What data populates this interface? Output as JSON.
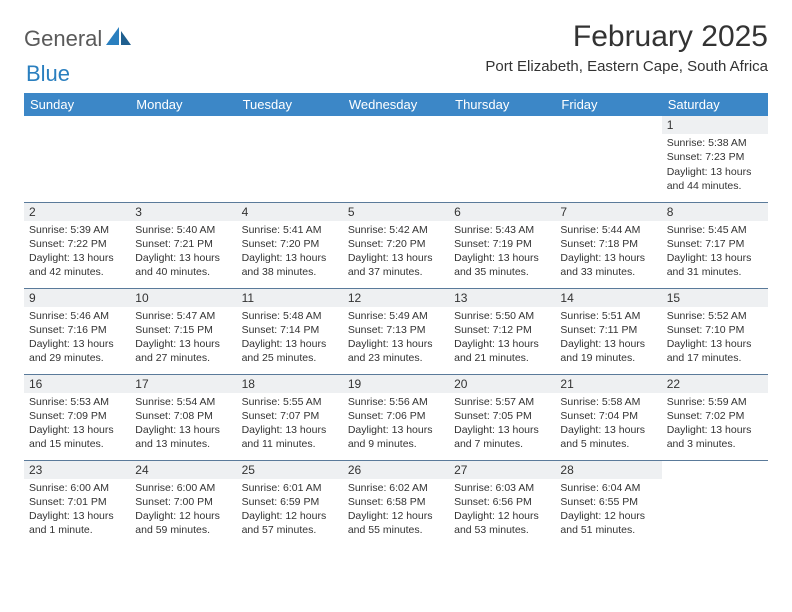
{
  "logo": {
    "word1": "General",
    "word2": "Blue",
    "icon_color": "#2a7fbf",
    "text1_color": "#5a5a5a",
    "text2_color": "#2a7fbf"
  },
  "title": "February 2025",
  "location": "Port Elizabeth, Eastern Cape, South Africa",
  "header_bg": "#3c87c7",
  "header_fg": "#ffffff",
  "daynum_bg": "#eef0f2",
  "rule_color": "#5a7a9a",
  "text_color": "#333333",
  "weekdays": [
    "Sunday",
    "Monday",
    "Tuesday",
    "Wednesday",
    "Thursday",
    "Friday",
    "Saturday"
  ],
  "weeks": [
    [
      {
        "n": "",
        "sr": "",
        "ss": "",
        "dl": ""
      },
      {
        "n": "",
        "sr": "",
        "ss": "",
        "dl": ""
      },
      {
        "n": "",
        "sr": "",
        "ss": "",
        "dl": ""
      },
      {
        "n": "",
        "sr": "",
        "ss": "",
        "dl": ""
      },
      {
        "n": "",
        "sr": "",
        "ss": "",
        "dl": ""
      },
      {
        "n": "",
        "sr": "",
        "ss": "",
        "dl": ""
      },
      {
        "n": "1",
        "sr": "Sunrise: 5:38 AM",
        "ss": "Sunset: 7:23 PM",
        "dl": "Daylight: 13 hours and 44 minutes."
      }
    ],
    [
      {
        "n": "2",
        "sr": "Sunrise: 5:39 AM",
        "ss": "Sunset: 7:22 PM",
        "dl": "Daylight: 13 hours and 42 minutes."
      },
      {
        "n": "3",
        "sr": "Sunrise: 5:40 AM",
        "ss": "Sunset: 7:21 PM",
        "dl": "Daylight: 13 hours and 40 minutes."
      },
      {
        "n": "4",
        "sr": "Sunrise: 5:41 AM",
        "ss": "Sunset: 7:20 PM",
        "dl": "Daylight: 13 hours and 38 minutes."
      },
      {
        "n": "5",
        "sr": "Sunrise: 5:42 AM",
        "ss": "Sunset: 7:20 PM",
        "dl": "Daylight: 13 hours and 37 minutes."
      },
      {
        "n": "6",
        "sr": "Sunrise: 5:43 AM",
        "ss": "Sunset: 7:19 PM",
        "dl": "Daylight: 13 hours and 35 minutes."
      },
      {
        "n": "7",
        "sr": "Sunrise: 5:44 AM",
        "ss": "Sunset: 7:18 PM",
        "dl": "Daylight: 13 hours and 33 minutes."
      },
      {
        "n": "8",
        "sr": "Sunrise: 5:45 AM",
        "ss": "Sunset: 7:17 PM",
        "dl": "Daylight: 13 hours and 31 minutes."
      }
    ],
    [
      {
        "n": "9",
        "sr": "Sunrise: 5:46 AM",
        "ss": "Sunset: 7:16 PM",
        "dl": "Daylight: 13 hours and 29 minutes."
      },
      {
        "n": "10",
        "sr": "Sunrise: 5:47 AM",
        "ss": "Sunset: 7:15 PM",
        "dl": "Daylight: 13 hours and 27 minutes."
      },
      {
        "n": "11",
        "sr": "Sunrise: 5:48 AM",
        "ss": "Sunset: 7:14 PM",
        "dl": "Daylight: 13 hours and 25 minutes."
      },
      {
        "n": "12",
        "sr": "Sunrise: 5:49 AM",
        "ss": "Sunset: 7:13 PM",
        "dl": "Daylight: 13 hours and 23 minutes."
      },
      {
        "n": "13",
        "sr": "Sunrise: 5:50 AM",
        "ss": "Sunset: 7:12 PM",
        "dl": "Daylight: 13 hours and 21 minutes."
      },
      {
        "n": "14",
        "sr": "Sunrise: 5:51 AM",
        "ss": "Sunset: 7:11 PM",
        "dl": "Daylight: 13 hours and 19 minutes."
      },
      {
        "n": "15",
        "sr": "Sunrise: 5:52 AM",
        "ss": "Sunset: 7:10 PM",
        "dl": "Daylight: 13 hours and 17 minutes."
      }
    ],
    [
      {
        "n": "16",
        "sr": "Sunrise: 5:53 AM",
        "ss": "Sunset: 7:09 PM",
        "dl": "Daylight: 13 hours and 15 minutes."
      },
      {
        "n": "17",
        "sr": "Sunrise: 5:54 AM",
        "ss": "Sunset: 7:08 PM",
        "dl": "Daylight: 13 hours and 13 minutes."
      },
      {
        "n": "18",
        "sr": "Sunrise: 5:55 AM",
        "ss": "Sunset: 7:07 PM",
        "dl": "Daylight: 13 hours and 11 minutes."
      },
      {
        "n": "19",
        "sr": "Sunrise: 5:56 AM",
        "ss": "Sunset: 7:06 PM",
        "dl": "Daylight: 13 hours and 9 minutes."
      },
      {
        "n": "20",
        "sr": "Sunrise: 5:57 AM",
        "ss": "Sunset: 7:05 PM",
        "dl": "Daylight: 13 hours and 7 minutes."
      },
      {
        "n": "21",
        "sr": "Sunrise: 5:58 AM",
        "ss": "Sunset: 7:04 PM",
        "dl": "Daylight: 13 hours and 5 minutes."
      },
      {
        "n": "22",
        "sr": "Sunrise: 5:59 AM",
        "ss": "Sunset: 7:02 PM",
        "dl": "Daylight: 13 hours and 3 minutes."
      }
    ],
    [
      {
        "n": "23",
        "sr": "Sunrise: 6:00 AM",
        "ss": "Sunset: 7:01 PM",
        "dl": "Daylight: 13 hours and 1 minute."
      },
      {
        "n": "24",
        "sr": "Sunrise: 6:00 AM",
        "ss": "Sunset: 7:00 PM",
        "dl": "Daylight: 12 hours and 59 minutes."
      },
      {
        "n": "25",
        "sr": "Sunrise: 6:01 AM",
        "ss": "Sunset: 6:59 PM",
        "dl": "Daylight: 12 hours and 57 minutes."
      },
      {
        "n": "26",
        "sr": "Sunrise: 6:02 AM",
        "ss": "Sunset: 6:58 PM",
        "dl": "Daylight: 12 hours and 55 minutes."
      },
      {
        "n": "27",
        "sr": "Sunrise: 6:03 AM",
        "ss": "Sunset: 6:56 PM",
        "dl": "Daylight: 12 hours and 53 minutes."
      },
      {
        "n": "28",
        "sr": "Sunrise: 6:04 AM",
        "ss": "Sunset: 6:55 PM",
        "dl": "Daylight: 12 hours and 51 minutes."
      },
      {
        "n": "",
        "sr": "",
        "ss": "",
        "dl": ""
      }
    ]
  ]
}
